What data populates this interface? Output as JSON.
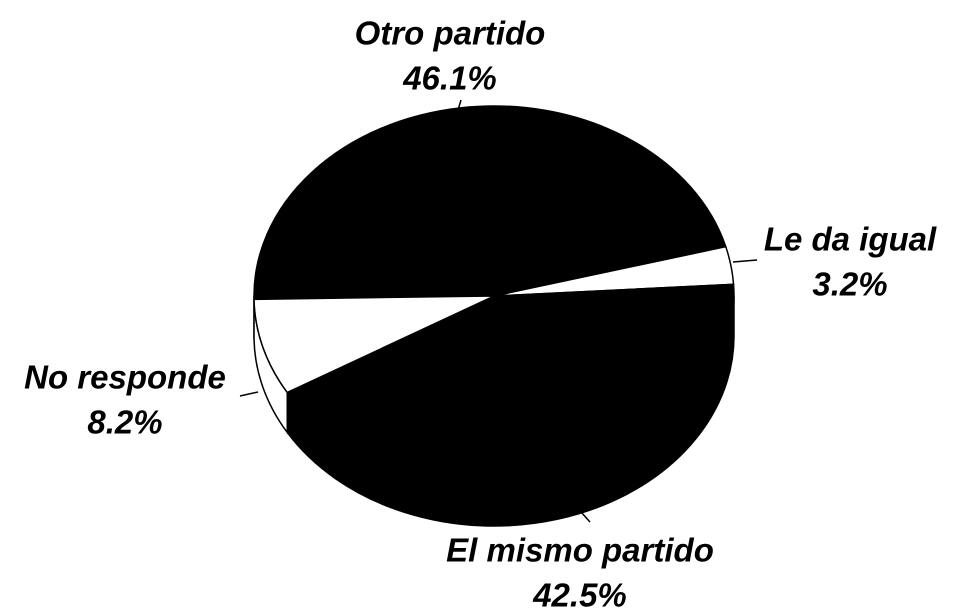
{
  "chart_data": {
    "type": "pie",
    "categories": [
      "Otro partido",
      "Le da igual",
      "El mismo partido",
      "No responde"
    ],
    "values": [
      46.1,
      3.2,
      42.5,
      8.2
    ],
    "value_labels": [
      "46.1%",
      "3.2%",
      "42.5%",
      "8.2%"
    ],
    "colors": [
      "#000000",
      "#ffffff",
      "#000000",
      "#ffffff"
    ]
  }
}
